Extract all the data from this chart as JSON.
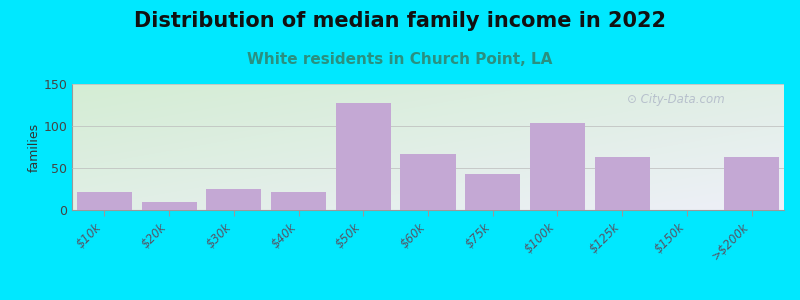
{
  "title": "Distribution of median family income in 2022",
  "subtitle": "White residents in Church Point, LA",
  "categories": [
    "$10k",
    "$20k",
    "$30k",
    "$40k",
    "$50k",
    "$60k",
    "$75k",
    "$100k",
    "$125k",
    "$150k",
    ">$200k"
  ],
  "values": [
    22,
    10,
    25,
    21,
    127,
    67,
    43,
    104,
    63,
    0,
    63
  ],
  "bar_color": "#c4a8d4",
  "background_outer": "#00e8ff",
  "background_inner_topleft": "#d4edd4",
  "background_inner_bottomright": "#eef0f8",
  "title_fontsize": 15,
  "subtitle_fontsize": 11,
  "subtitle_color": "#2a9080",
  "ylabel": "families",
  "ylim": [
    0,
    150
  ],
  "yticks": [
    0,
    50,
    100,
    150
  ],
  "watermark": "City-Data.com",
  "watermark_color": "#b0b8c8"
}
